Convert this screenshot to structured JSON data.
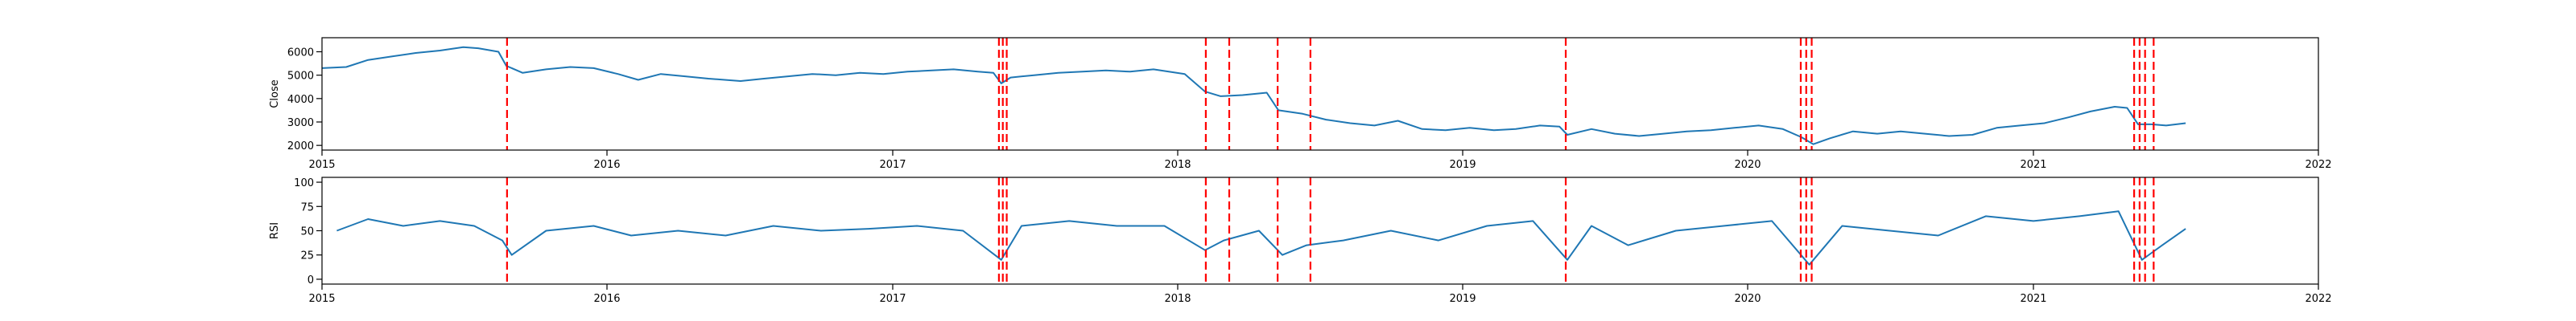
{
  "chart_data": [
    {
      "type": "line",
      "ylabel": "Close",
      "xlabel": "",
      "title": "",
      "xlim": [
        "2015-01-01",
        "2022-01-01"
      ],
      "ylim": [
        1800,
        6600
      ],
      "x_ticks": [
        "2015",
        "2016",
        "2017",
        "2018",
        "2019",
        "2020",
        "2021",
        "2022"
      ],
      "y_ticks": [
        "2000",
        "3000",
        "4000",
        "5000",
        "6000"
      ],
      "y_tick_values": [
        2000,
        3000,
        4000,
        5000,
        6000
      ],
      "grid": false,
      "series": [
        {
          "color": "#1f77b4",
          "points": [
            [
              "2015-01-01",
              5300
            ],
            [
              "2015-02-01",
              5350
            ],
            [
              "2015-03-01",
              5650
            ],
            [
              "2015-04-01",
              5800
            ],
            [
              "2015-05-01",
              5950
            ],
            [
              "2015-06-01",
              6050
            ],
            [
              "2015-07-01",
              6200
            ],
            [
              "2015-07-20",
              6150
            ],
            [
              "2015-08-15",
              6000
            ],
            [
              "2015-08-25",
              5400
            ],
            [
              "2015-09-15",
              5100
            ],
            [
              "2015-10-15",
              5250
            ],
            [
              "2015-11-15",
              5350
            ],
            [
              "2015-12-15",
              5300
            ],
            [
              "2016-01-15",
              5050
            ],
            [
              "2016-02-10",
              4800
            ],
            [
              "2016-03-10",
              5050
            ],
            [
              "2016-04-10",
              4950
            ],
            [
              "2016-05-10",
              4850
            ],
            [
              "2016-06-20",
              4750
            ],
            [
              "2016-07-20",
              4850
            ],
            [
              "2016-08-20",
              4950
            ],
            [
              "2016-09-20",
              5050
            ],
            [
              "2016-10-20",
              5000
            ],
            [
              "2016-11-20",
              5100
            ],
            [
              "2016-12-20",
              5050
            ],
            [
              "2017-01-20",
              5150
            ],
            [
              "2017-02-20",
              5200
            ],
            [
              "2017-03-20",
              5250
            ],
            [
              "2017-04-20",
              5150
            ],
            [
              "2017-05-10",
              5100
            ],
            [
              "2017-05-20",
              4650
            ],
            [
              "2017-06-01",
              4900
            ],
            [
              "2017-07-01",
              5000
            ],
            [
              "2017-08-01",
              5100
            ],
            [
              "2017-09-01",
              5150
            ],
            [
              "2017-10-01",
              5200
            ],
            [
              "2017-11-01",
              5150
            ],
            [
              "2017-12-01",
              5250
            ],
            [
              "2018-01-10",
              5050
            ],
            [
              "2018-02-05",
              4300
            ],
            [
              "2018-02-25",
              4100
            ],
            [
              "2018-03-25",
              4150
            ],
            [
              "2018-04-25",
              4250
            ],
            [
              "2018-05-10",
              3500
            ],
            [
              "2018-06-10",
              3350
            ],
            [
              "2018-07-10",
              3100
            ],
            [
              "2018-08-10",
              2950
            ],
            [
              "2018-09-10",
              2850
            ],
            [
              "2018-10-10",
              3050
            ],
            [
              "2018-11-10",
              2700
            ],
            [
              "2018-12-10",
              2650
            ],
            [
              "2019-01-10",
              2750
            ],
            [
              "2019-02-10",
              2650
            ],
            [
              "2019-03-10",
              2700
            ],
            [
              "2019-04-10",
              2850
            ],
            [
              "2019-05-05",
              2800
            ],
            [
              "2019-05-15",
              2450
            ],
            [
              "2019-06-15",
              2700
            ],
            [
              "2019-07-15",
              2500
            ],
            [
              "2019-08-15",
              2400
            ],
            [
              "2019-09-15",
              2500
            ],
            [
              "2019-10-15",
              2600
            ],
            [
              "2019-11-15",
              2650
            ],
            [
              "2019-12-15",
              2750
            ],
            [
              "2020-01-15",
              2850
            ],
            [
              "2020-02-15",
              2700
            ],
            [
              "2020-03-10",
              2350
            ],
            [
              "2020-03-25",
              2050
            ],
            [
              "2020-04-15",
              2300
            ],
            [
              "2020-05-15",
              2600
            ],
            [
              "2020-06-15",
              2500
            ],
            [
              "2020-07-15",
              2600
            ],
            [
              "2020-08-15",
              2500
            ],
            [
              "2020-09-15",
              2400
            ],
            [
              "2020-10-15",
              2450
            ],
            [
              "2020-11-15",
              2750
            ],
            [
              "2020-12-15",
              2850
            ],
            [
              "2021-01-15",
              2950
            ],
            [
              "2021-02-15",
              3200
            ],
            [
              "2021-03-15",
              3450
            ],
            [
              "2021-04-15",
              3650
            ],
            [
              "2021-05-01",
              3600
            ],
            [
              "2021-05-15",
              2900
            ],
            [
              "2021-06-01",
              2900
            ],
            [
              "2021-06-20",
              2850
            ],
            [
              "2021-07-15",
              2950
            ]
          ]
        }
      ],
      "markers": {
        "color": "#ff0000",
        "style": "dashed",
        "dates": [
          "2015-08-26",
          "2017-05-17",
          "2017-05-22",
          "2017-05-27",
          "2018-02-06",
          "2018-03-08",
          "2018-05-09",
          "2018-06-20",
          "2019-05-13",
          "2020-03-09",
          "2020-03-16",
          "2020-03-23",
          "2021-05-10",
          "2021-05-17",
          "2021-05-24",
          "2021-06-04"
        ]
      }
    },
    {
      "type": "line",
      "ylabel": "RSI",
      "xlabel": "",
      "title": "",
      "xlim": [
        "2015-01-01",
        "2022-01-01"
      ],
      "ylim": [
        -5,
        105
      ],
      "x_ticks": [
        "2015",
        "2016",
        "2017",
        "2018",
        "2019",
        "2020",
        "2021",
        "2022"
      ],
      "y_ticks": [
        "0",
        "25",
        "50",
        "75",
        "100"
      ],
      "y_tick_values": [
        0,
        25,
        50,
        75,
        100
      ],
      "grid": false,
      "series": [
        {
          "color": "#1f77b4",
          "points": [
            [
              "2015-01-20",
              50
            ],
            [
              "2015-03-01",
              62
            ],
            [
              "2015-04-15",
              55
            ],
            [
              "2015-06-01",
              60
            ],
            [
              "2015-07-15",
              55
            ],
            [
              "2015-08-20",
              40
            ],
            [
              "2015-09-01",
              25
            ],
            [
              "2015-10-15",
              50
            ],
            [
              "2015-12-15",
              55
            ],
            [
              "2016-02-01",
              45
            ],
            [
              "2016-04-01",
              50
            ],
            [
              "2016-06-01",
              45
            ],
            [
              "2016-08-01",
              55
            ],
            [
              "2016-10-01",
              50
            ],
            [
              "2016-12-01",
              52
            ],
            [
              "2017-02-01",
              55
            ],
            [
              "2017-04-01",
              50
            ],
            [
              "2017-05-20",
              20
            ],
            [
              "2017-06-15",
              55
            ],
            [
              "2017-08-15",
              60
            ],
            [
              "2017-10-15",
              55
            ],
            [
              "2017-12-15",
              55
            ],
            [
              "2018-02-05",
              30
            ],
            [
              "2018-03-01",
              40
            ],
            [
              "2018-04-15",
              50
            ],
            [
              "2018-05-15",
              25
            ],
            [
              "2018-06-15",
              35
            ],
            [
              "2018-08-01",
              40
            ],
            [
              "2018-10-01",
              50
            ],
            [
              "2018-12-01",
              40
            ],
            [
              "2019-02-01",
              55
            ],
            [
              "2019-04-01",
              60
            ],
            [
              "2019-05-15",
              20
            ],
            [
              "2019-06-15",
              55
            ],
            [
              "2019-08-01",
              35
            ],
            [
              "2019-10-01",
              50
            ],
            [
              "2019-12-01",
              55
            ],
            [
              "2020-02-01",
              60
            ],
            [
              "2020-03-20",
              15
            ],
            [
              "2020-05-01",
              55
            ],
            [
              "2020-07-01",
              50
            ],
            [
              "2020-09-01",
              45
            ],
            [
              "2020-11-01",
              65
            ],
            [
              "2021-01-01",
              60
            ],
            [
              "2021-03-01",
              65
            ],
            [
              "2021-04-20",
              70
            ],
            [
              "2021-05-20",
              20
            ],
            [
              "2021-06-15",
              35
            ],
            [
              "2021-07-15",
              52
            ]
          ]
        }
      ],
      "markers": {
        "color": "#ff0000",
        "style": "dashed",
        "dates": [
          "2015-08-26",
          "2017-05-17",
          "2017-05-22",
          "2017-05-27",
          "2018-02-06",
          "2018-03-08",
          "2018-05-09",
          "2018-06-20",
          "2019-05-13",
          "2020-03-09",
          "2020-03-16",
          "2020-03-23",
          "2021-05-10",
          "2021-05-17",
          "2021-05-24",
          "2021-06-04"
        ]
      }
    }
  ]
}
